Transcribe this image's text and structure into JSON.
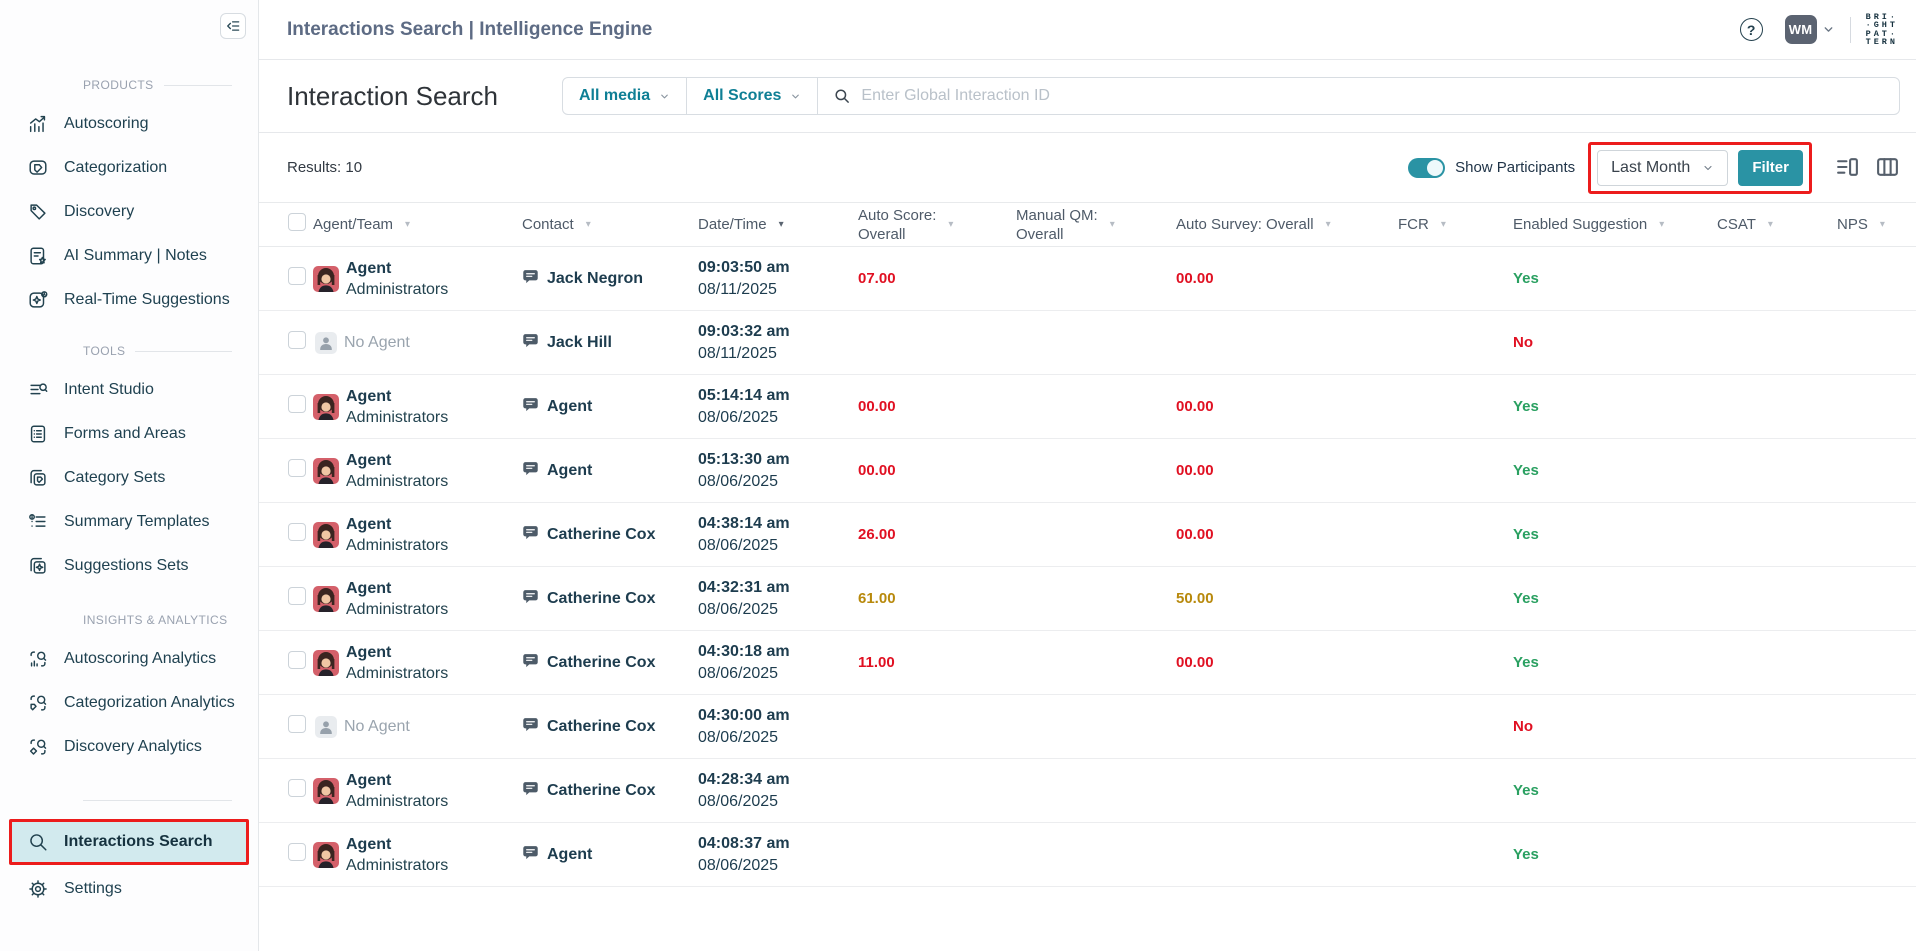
{
  "header": {
    "title": "Interactions Search | Intelligence Engine",
    "user_initials": "WM",
    "logo_lines": [
      "BRI·",
      "·GHT",
      "PAT·",
      "TERN"
    ]
  },
  "search_bar": {
    "page_title": "Interaction Search",
    "media_dropdown": "All media",
    "scores_dropdown": "All Scores",
    "global_search_placeholder": "Enter Global Interaction ID"
  },
  "controls": {
    "results": "Results: 10",
    "show_participants_label": "Show Participants",
    "participants_on": true,
    "date_range": "Last Month",
    "filter_label": "Filter"
  },
  "colors": {
    "accent_teal": "#2a93a4",
    "dropdown_teal": "#0f7f95",
    "score_red": "#e01022",
    "score_gold": "#b8890c",
    "yes_green": "#2aa061",
    "annotation_red": "#ec1c1c",
    "active_item_bg": "#d2eaee"
  },
  "sidebar": {
    "sections": [
      {
        "label": "PRODUCTS",
        "items": [
          {
            "label": "Autoscoring",
            "icon": "autoscoring-icon"
          },
          {
            "label": "Categorization",
            "icon": "categorization-icon"
          },
          {
            "label": "Discovery",
            "icon": "discovery-icon"
          },
          {
            "label": "AI Summary | Notes",
            "icon": "ai-summary-icon"
          },
          {
            "label": "Real-Time Suggestions",
            "icon": "realtime-suggestions-icon"
          }
        ]
      },
      {
        "label": "TOOLS",
        "items": [
          {
            "label": "Intent Studio",
            "icon": "intent-studio-icon"
          },
          {
            "label": "Forms and Areas",
            "icon": "forms-areas-icon"
          },
          {
            "label": "Category Sets",
            "icon": "category-sets-icon"
          },
          {
            "label": "Summary Templates",
            "icon": "summary-templates-icon"
          },
          {
            "label": "Suggestions Sets",
            "icon": "suggestions-sets-icon"
          }
        ]
      },
      {
        "label": "INSIGHTS & ANALYTICS",
        "items": [
          {
            "label": "Autoscoring Analytics",
            "icon": "autoscoring-analytics-icon"
          },
          {
            "label": "Categorization Analytics",
            "icon": "categorization-analytics-icon"
          },
          {
            "label": "Discovery Analytics",
            "icon": "discovery-analytics-icon"
          }
        ]
      }
    ],
    "active_item": {
      "label": "Interactions Search",
      "icon": "search-icon"
    },
    "settings_item": {
      "label": "Settings",
      "icon": "gear-icon"
    }
  },
  "table": {
    "headers": [
      {
        "lines": [
          "Agent/Team"
        ],
        "active_sort": false
      },
      {
        "lines": [
          "Contact"
        ],
        "active_sort": false
      },
      {
        "lines": [
          "Date/Time"
        ],
        "active_sort": true
      },
      {
        "lines": [
          "Auto Score:",
          "Overall"
        ],
        "active_sort": false
      },
      {
        "lines": [
          "Manual QM:",
          "Overall"
        ],
        "active_sort": false
      },
      {
        "lines": [
          "Auto Survey: Overall"
        ],
        "active_sort": false
      },
      {
        "lines": [
          "FCR"
        ],
        "active_sort": false
      },
      {
        "lines": [
          "Enabled Suggestion"
        ],
        "active_sort": false
      },
      {
        "lines": [
          "CSAT"
        ],
        "active_sort": false
      },
      {
        "lines": [
          "NPS"
        ],
        "active_sort": false
      }
    ],
    "rows": [
      {
        "agent": "Agent",
        "team": "Administrators",
        "no_agent": false,
        "contact": "Jack Negron",
        "time": "09:03:50 am",
        "date": "08/11/2025",
        "auto_score": "07.00",
        "auto_score_color": "red",
        "manual_qm": "",
        "auto_survey": "00.00",
        "auto_survey_color": "red",
        "fcr": "",
        "enabled_suggestion": "Yes",
        "enabled_color": "green",
        "csat": "",
        "nps": ""
      },
      {
        "agent": "No Agent",
        "team": "",
        "no_agent": true,
        "contact": "Jack Hill",
        "time": "09:03:32 am",
        "date": "08/11/2025",
        "auto_score": "",
        "auto_score_color": "",
        "manual_qm": "",
        "auto_survey": "",
        "auto_survey_color": "",
        "fcr": "",
        "enabled_suggestion": "No",
        "enabled_color": "red",
        "csat": "",
        "nps": ""
      },
      {
        "agent": "Agent",
        "team": "Administrators",
        "no_agent": false,
        "contact": "Agent",
        "time": "05:14:14 am",
        "date": "08/06/2025",
        "auto_score": "00.00",
        "auto_score_color": "red",
        "manual_qm": "",
        "auto_survey": "00.00",
        "auto_survey_color": "red",
        "fcr": "",
        "enabled_suggestion": "Yes",
        "enabled_color": "green",
        "csat": "",
        "nps": ""
      },
      {
        "agent": "Agent",
        "team": "Administrators",
        "no_agent": false,
        "contact": "Agent",
        "time": "05:13:30 am",
        "date": "08/06/2025",
        "auto_score": "00.00",
        "auto_score_color": "red",
        "manual_qm": "",
        "auto_survey": "00.00",
        "auto_survey_color": "red",
        "fcr": "",
        "enabled_suggestion": "Yes",
        "enabled_color": "green",
        "csat": "",
        "nps": ""
      },
      {
        "agent": "Agent",
        "team": "Administrators",
        "no_agent": false,
        "contact": "Catherine Cox",
        "time": "04:38:14 am",
        "date": "08/06/2025",
        "auto_score": "26.00",
        "auto_score_color": "red",
        "manual_qm": "",
        "auto_survey": "00.00",
        "auto_survey_color": "red",
        "fcr": "",
        "enabled_suggestion": "Yes",
        "enabled_color": "green",
        "csat": "",
        "nps": ""
      },
      {
        "agent": "Agent",
        "team": "Administrators",
        "no_agent": false,
        "contact": "Catherine Cox",
        "time": "04:32:31 am",
        "date": "08/06/2025",
        "auto_score": "61.00",
        "auto_score_color": "gold",
        "manual_qm": "",
        "auto_survey": "50.00",
        "auto_survey_color": "gold",
        "fcr": "",
        "enabled_suggestion": "Yes",
        "enabled_color": "green",
        "csat": "",
        "nps": ""
      },
      {
        "agent": "Agent",
        "team": "Administrators",
        "no_agent": false,
        "contact": "Catherine Cox",
        "time": "04:30:18 am",
        "date": "08/06/2025",
        "auto_score": "11.00",
        "auto_score_color": "red",
        "manual_qm": "",
        "auto_survey": "00.00",
        "auto_survey_color": "red",
        "fcr": "",
        "enabled_suggestion": "Yes",
        "enabled_color": "green",
        "csat": "",
        "nps": ""
      },
      {
        "agent": "No Agent",
        "team": "",
        "no_agent": true,
        "contact": "Catherine Cox",
        "time": "04:30:00 am",
        "date": "08/06/2025",
        "auto_score": "",
        "auto_score_color": "",
        "manual_qm": "",
        "auto_survey": "",
        "auto_survey_color": "",
        "fcr": "",
        "enabled_suggestion": "No",
        "enabled_color": "red",
        "csat": "",
        "nps": ""
      },
      {
        "agent": "Agent",
        "team": "Administrators",
        "no_agent": false,
        "contact": "Catherine Cox",
        "time": "04:28:34 am",
        "date": "08/06/2025",
        "auto_score": "",
        "auto_score_color": "",
        "manual_qm": "",
        "auto_survey": "",
        "auto_survey_color": "",
        "fcr": "",
        "enabled_suggestion": "Yes",
        "enabled_color": "green",
        "csat": "",
        "nps": ""
      },
      {
        "agent": "Agent",
        "team": "Administrators",
        "no_agent": false,
        "contact": "Agent",
        "time": "04:08:37 am",
        "date": "08/06/2025",
        "auto_score": "",
        "auto_score_color": "",
        "manual_qm": "",
        "auto_survey": "",
        "auto_survey_color": "",
        "fcr": "",
        "enabled_suggestion": "Yes",
        "enabled_color": "green",
        "csat": "",
        "nps": ""
      }
    ]
  }
}
